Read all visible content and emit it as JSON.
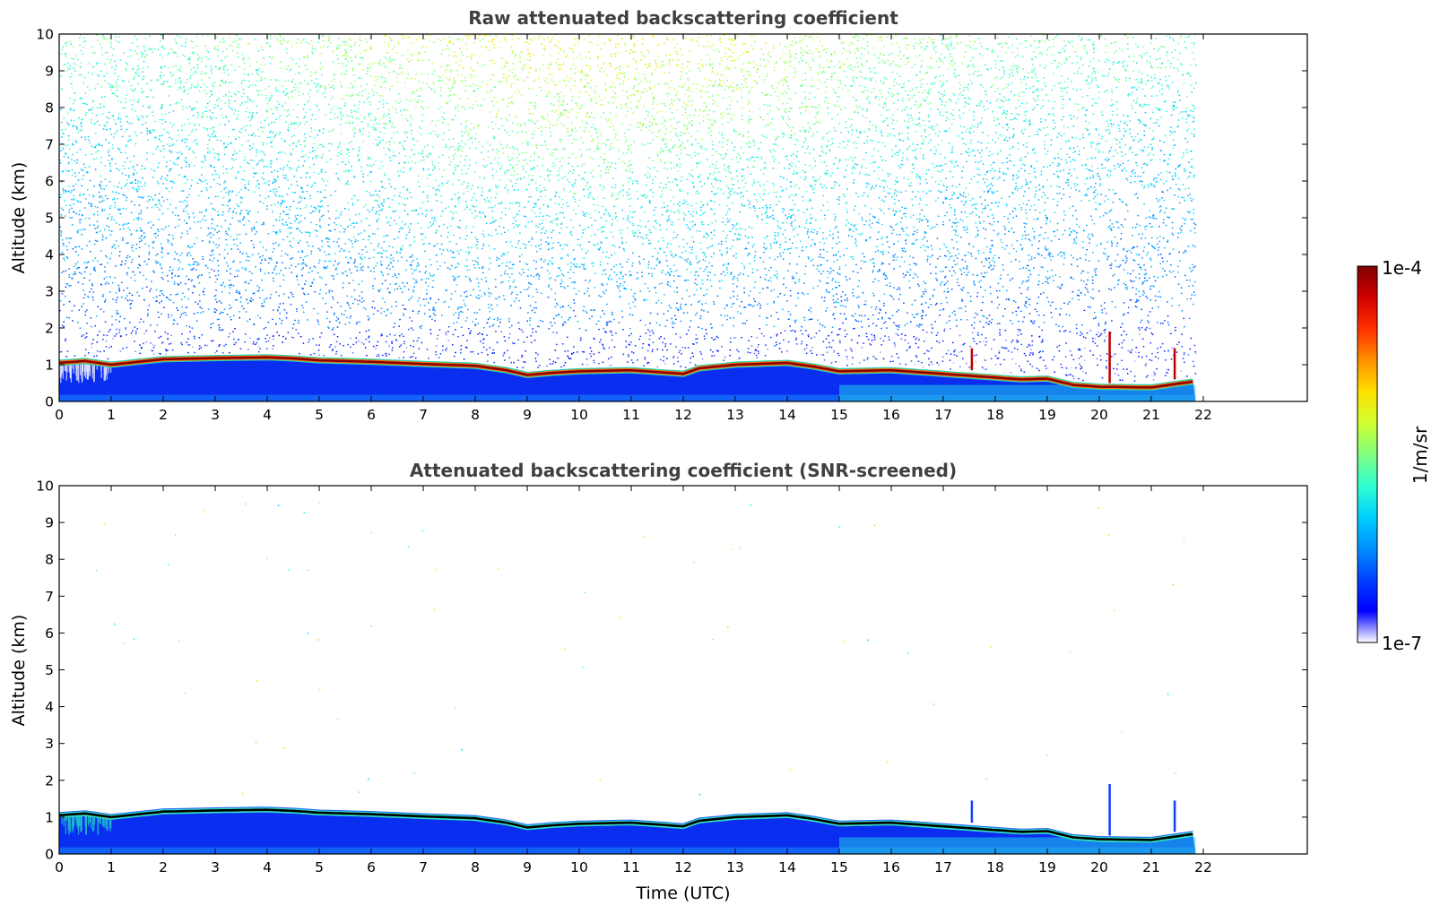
{
  "chart_data": [
    {
      "type": "heatmap",
      "title": "Raw attenuated backscattering coefficient",
      "xlabel": "",
      "ylabel": "Altitude (km)",
      "xlim": [
        0,
        24
      ],
      "ylim": [
        0,
        10
      ],
      "x_ticks": [
        "0",
        "1",
        "2",
        "3",
        "4",
        "5",
        "6",
        "7",
        "8",
        "9",
        "10",
        "11",
        "12",
        "13",
        "14",
        "15",
        "16",
        "17",
        "18",
        "19",
        "20",
        "21",
        "22"
      ],
      "y_ticks": [
        "0",
        "1",
        "2",
        "3",
        "4",
        "5",
        "6",
        "7",
        "8",
        "9",
        "10"
      ],
      "data_extent_time": [
        0,
        21.85
      ],
      "layer_top_km": [
        [
          0,
          1.05
        ],
        [
          0.5,
          1.1
        ],
        [
          1,
          1.0
        ],
        [
          2,
          1.15
        ],
        [
          3,
          1.18
        ],
        [
          4,
          1.2
        ],
        [
          4.5,
          1.17
        ],
        [
          5,
          1.12
        ],
        [
          6,
          1.08
        ],
        [
          7,
          1.02
        ],
        [
          8,
          0.97
        ],
        [
          8.6,
          0.85
        ],
        [
          9,
          0.72
        ],
        [
          9.5,
          0.78
        ],
        [
          10,
          0.82
        ],
        [
          11,
          0.85
        ],
        [
          11.5,
          0.8
        ],
        [
          12,
          0.75
        ],
        [
          12.3,
          0.9
        ],
        [
          13,
          1.0
        ],
        [
          14,
          1.05
        ],
        [
          14.5,
          0.95
        ],
        [
          15,
          0.82
        ],
        [
          16,
          0.85
        ],
        [
          17,
          0.75
        ],
        [
          18,
          0.65
        ],
        [
          18.5,
          0.6
        ],
        [
          19,
          0.62
        ],
        [
          19.5,
          0.45
        ],
        [
          20,
          0.4
        ],
        [
          21,
          0.38
        ],
        [
          21.85,
          0.55
        ]
      ],
      "value_scale": "log",
      "noise_trend": "noise above the boundary layer increases with altitude, peaking in yellow/green around 7–14 UTC above 7 km"
    },
    {
      "type": "heatmap",
      "title": "Attenuated backscattering coefficient (SNR-screened)",
      "xlabel": "Time (UTC)",
      "ylabel": "Altitude (km)",
      "xlim": [
        0,
        24
      ],
      "ylim": [
        0,
        10
      ],
      "x_ticks": [
        "0",
        "1",
        "2",
        "3",
        "4",
        "5",
        "6",
        "7",
        "8",
        "9",
        "10",
        "11",
        "12",
        "13",
        "14",
        "15",
        "16",
        "17",
        "18",
        "19",
        "20",
        "21",
        "22"
      ],
      "y_ticks": [
        "0",
        "1",
        "2",
        "3",
        "4",
        "5",
        "6",
        "7",
        "8",
        "9",
        "10"
      ],
      "data_extent_time": [
        0,
        21.85
      ],
      "value_scale": "log",
      "noise_trend": "signal above the boundary layer is screened out (white), with only sparse isolated points"
    }
  ],
  "colorbar": {
    "label": "1/m/sr",
    "max_label": "1e-4",
    "min_label": "1e-7",
    "colors": [
      "#ffffff",
      "#0000ff",
      "#0040ff",
      "#0090ff",
      "#00d0ff",
      "#30ffd0",
      "#80ff80",
      "#d0ff30",
      "#ffe000",
      "#ff9000",
      "#ff3000",
      "#d00000",
      "#800000"
    ]
  }
}
